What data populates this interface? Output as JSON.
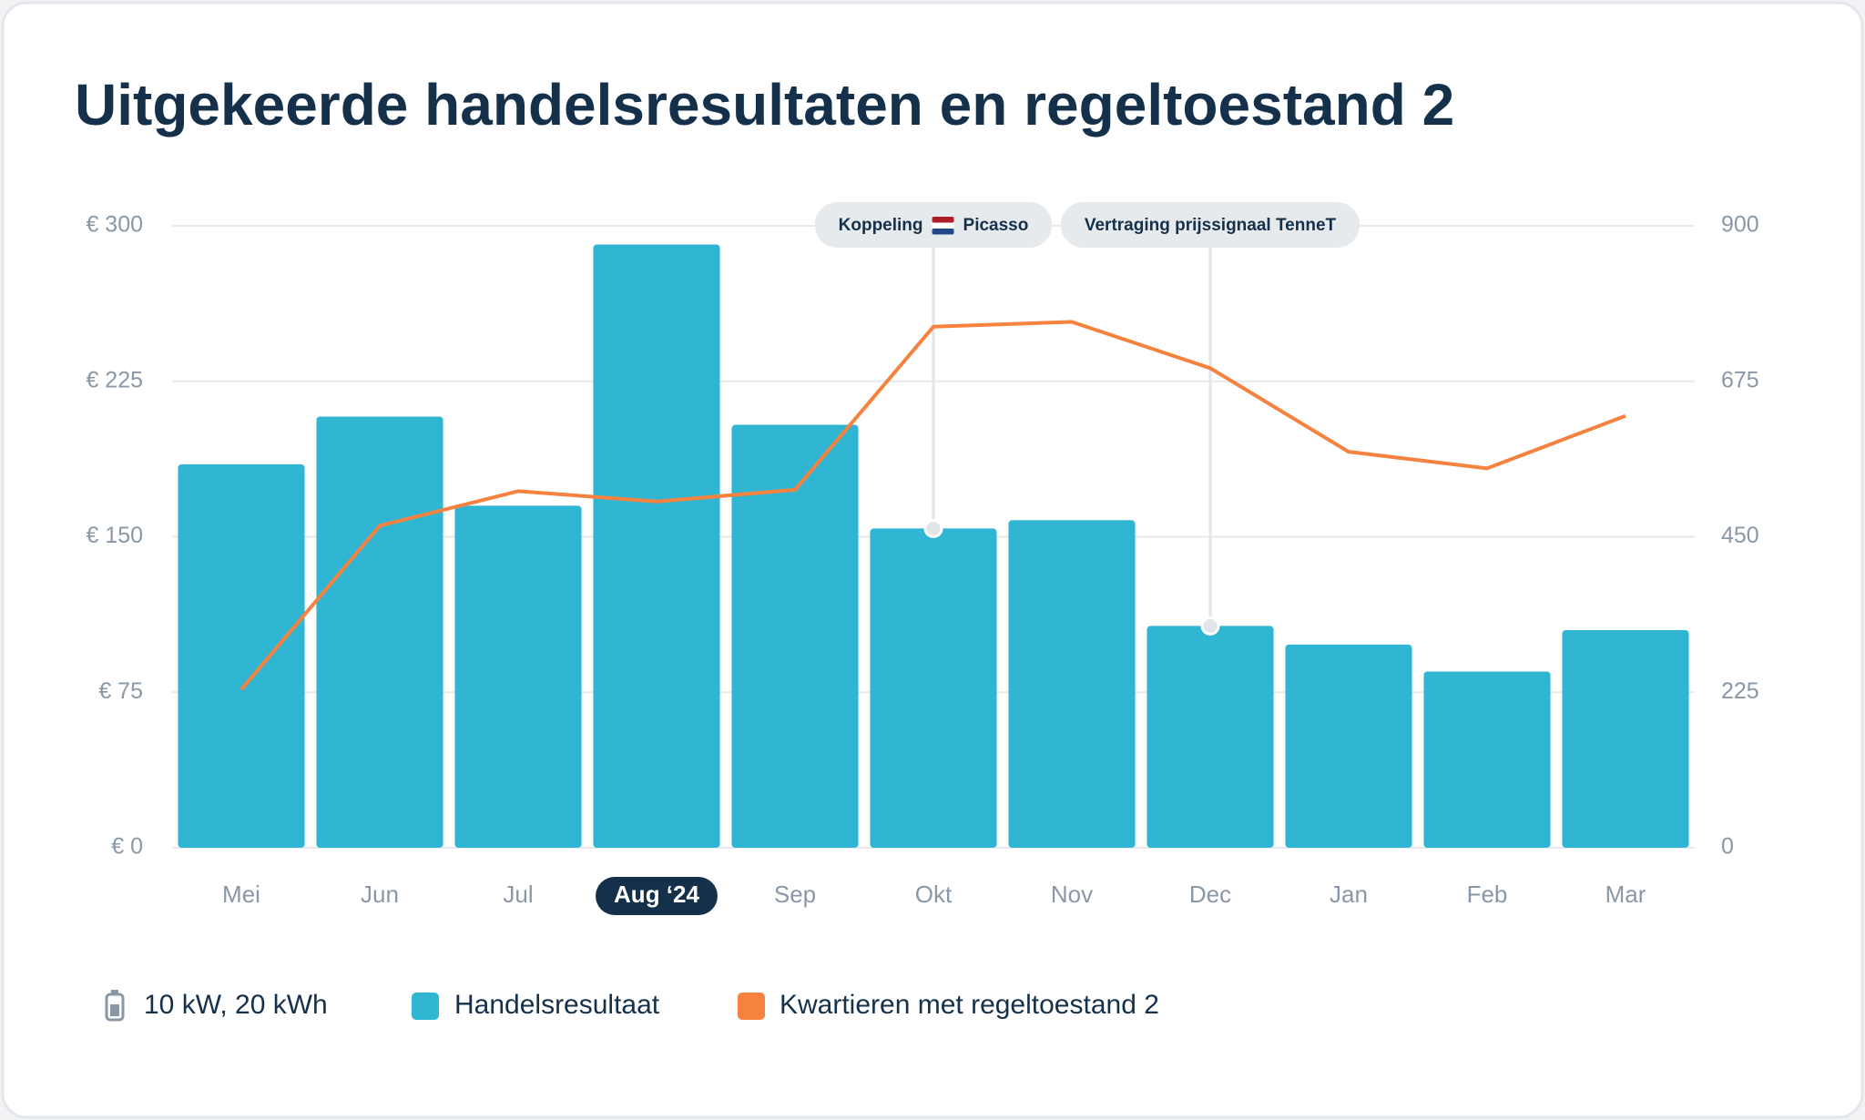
{
  "chart_data": {
    "type": "bar-line",
    "title": "Uitgekeerde handelsresultaten en regeltoestand 2",
    "categories": [
      "Mei",
      "Jun",
      "Jul",
      "Aug ‘24",
      "Sep",
      "Okt",
      "Nov",
      "Dec",
      "Jan",
      "Feb",
      "Mar"
    ],
    "highlighted_category": 3,
    "series": [
      {
        "name": "Handelsresultaat",
        "type": "bar",
        "color": "#30b5d3",
        "values": [
          185,
          208,
          165,
          291,
          204,
          154,
          158,
          107,
          98,
          85,
          105
        ]
      },
      {
        "name": "Kwartieren met regeltoestand 2",
        "type": "line",
        "axis": "y2",
        "color": "#f5823f",
        "values": [
          229,
          466,
          516,
          501,
          518,
          754,
          761,
          694,
          573,
          549,
          625
        ]
      }
    ],
    "ylim": [
      0,
      300
    ],
    "yticks": [
      {
        "value": 0,
        "label": "€ 0"
      },
      {
        "value": 75,
        "label": "€ 75"
      },
      {
        "value": 150,
        "label": "€ 150"
      },
      {
        "value": 225,
        "label": "€ 225"
      },
      {
        "value": 300,
        "label": "€ 300"
      }
    ],
    "y2lim": [
      0,
      900
    ],
    "y2ticks": [
      0,
      225,
      450,
      675,
      900
    ],
    "grid": true,
    "annotations": [
      {
        "parts": [
          "Koppeling",
          "Picasso"
        ]
      },
      {
        "parts": [
          "Vertraging prijssignaal TenneT"
        ]
      }
    ],
    "battery_label": "10 kW, 20 kWh"
  }
}
